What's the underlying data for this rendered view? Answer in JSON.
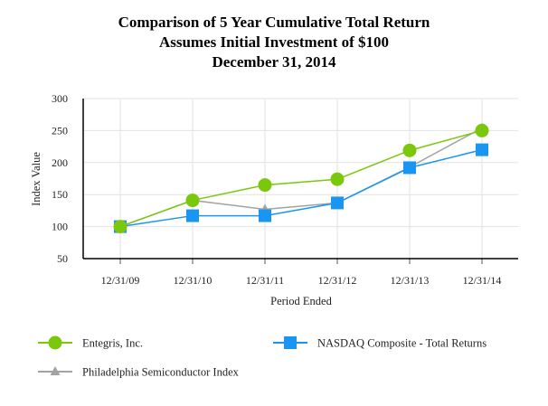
{
  "chart_data": {
    "type": "line",
    "title": [
      "Comparison of 5 Year Cumulative Total Return",
      "Assumes Initial Investment of $100",
      "December 31, 2014"
    ],
    "xlabel": "Period Ended",
    "ylabel": "Index Value",
    "categories": [
      "12/31/09",
      "12/31/10",
      "12/31/11",
      "12/31/12",
      "12/31/13",
      "12/31/14"
    ],
    "ylim": [
      50,
      300
    ],
    "yticks": [
      50,
      100,
      150,
      200,
      250,
      300
    ],
    "grid": true,
    "legend_position": "bottom",
    "series": [
      {
        "name": "Entegris, Inc.",
        "marker": "circle",
        "color": "#7ac70c",
        "values": [
          100,
          141,
          165,
          174,
          219,
          250
        ]
      },
      {
        "name": "NASDAQ Composite - Total Returns",
        "marker": "square",
        "color": "#1b95f2",
        "values": [
          100,
          117,
          117,
          137,
          192,
          220
        ]
      },
      {
        "name": "Philadelphia Semiconductor Index",
        "marker": "triangle",
        "color": "#a3a3a3",
        "values": [
          100,
          141,
          127,
          137,
          193,
          254
        ]
      }
    ]
  }
}
